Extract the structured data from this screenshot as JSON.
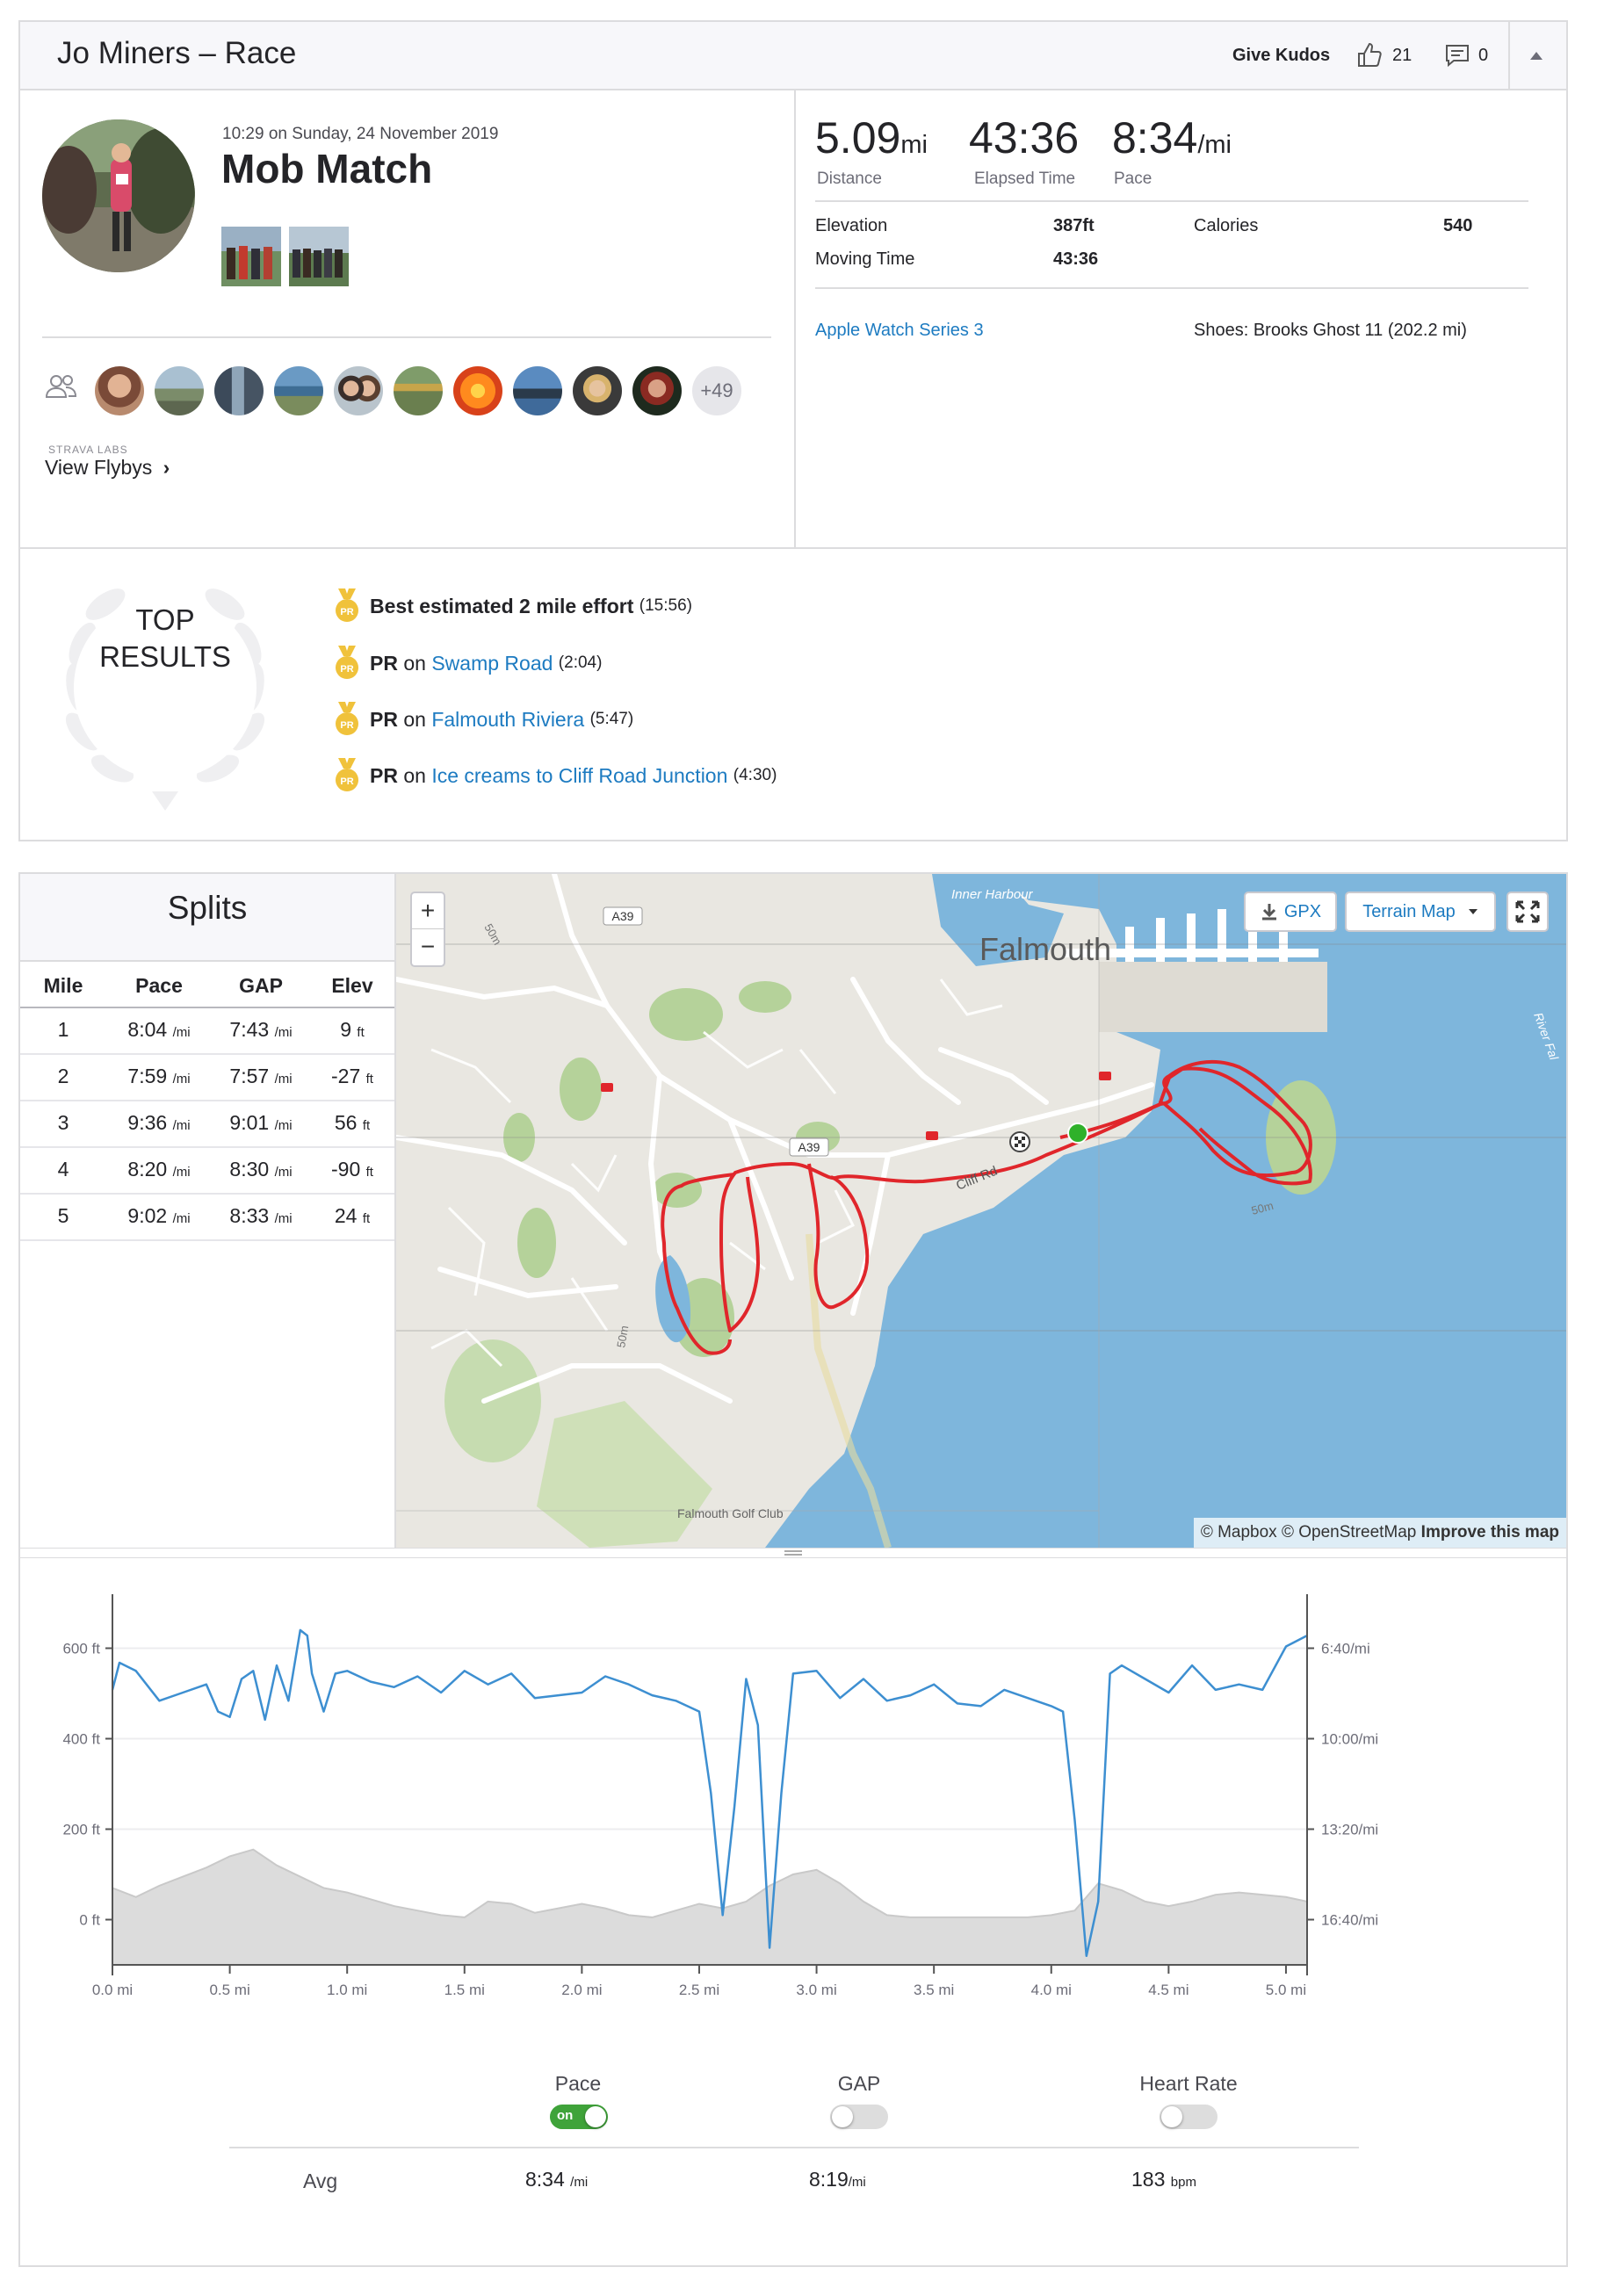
{
  "header": {
    "title": "Jo Miners – Race",
    "give_kudos": "Give Kudos",
    "kudos_count": "21",
    "comment_count": "0",
    "icons": [
      "thumbs-up-icon",
      "comment-icon",
      "caret-up-icon"
    ]
  },
  "activity": {
    "datetime": "10:29 on Sunday, 24 November 2019",
    "name": "Mob Match",
    "more_athletes": "+49",
    "labs_label": "STRAVA LABS",
    "flybys": "View Flybys",
    "flybys_chevron": "›"
  },
  "stats": {
    "distance_value": "5.09",
    "distance_unit": "mi",
    "distance_label": "Distance",
    "elapsed_value": "43:36",
    "elapsed_label": "Elapsed Time",
    "pace_value": "8:34",
    "pace_unit": "/mi",
    "pace_label": "Pace",
    "elevation_label": "Elevation",
    "elevation_value": "387ft",
    "moving_label": "Moving Time",
    "moving_value": "43:36",
    "calories_label": "Calories",
    "calories_value": "540",
    "device": "Apple Watch Series 3",
    "shoes": "Shoes: Brooks Ghost 11 (202.2 mi)"
  },
  "top_results": {
    "line1": "TOP",
    "line2": "RESULTS",
    "medal_text": "PR",
    "items": [
      {
        "bold": "Best estimated 2 mile effort",
        "on": "",
        "link": "",
        "time": "(15:56)"
      },
      {
        "bold": "PR",
        "on": "on",
        "link": "Swamp Road",
        "time": "(2:04)"
      },
      {
        "bold": "PR",
        "on": "on",
        "link": "Falmouth Riviera",
        "time": "(5:47)"
      },
      {
        "bold": "PR",
        "on": "on",
        "link": "Ice creams to Cliff Road Junction",
        "time": "(4:30)"
      }
    ]
  },
  "splits": {
    "title": "Splits",
    "headers": [
      "Mile",
      "Pace",
      "GAP",
      "Elev"
    ],
    "pace_unit": "/mi",
    "elev_unit": "ft",
    "rows": [
      {
        "mile": "1",
        "pace": "8:04",
        "gap": "7:43",
        "elev": "9"
      },
      {
        "mile": "2",
        "pace": "7:59",
        "gap": "7:57",
        "elev": "-27"
      },
      {
        "mile": "3",
        "pace": "9:36",
        "gap": "9:01",
        "elev": "56"
      },
      {
        "mile": "4",
        "pace": "8:20",
        "gap": "8:30",
        "elev": "-90"
      },
      {
        "mile": "5",
        "pace": "9:02",
        "gap": "8:33",
        "elev": "24"
      }
    ]
  },
  "map": {
    "zoom_in": "+",
    "zoom_out": "−",
    "gpx": "GPX",
    "map_type": "Terrain Map",
    "town": "Falmouth",
    "harbour": "Inner Harbour",
    "road_a39": "A39",
    "road_cliff": "Cliff Rd",
    "contour": "50m",
    "golf": "Falmouth Golf Club",
    "river": "River Fal",
    "attr_mapbox": "© Mapbox",
    "attr_osm": "© OpenStreetMap",
    "attr_improve": "Improve this map",
    "colors": {
      "water": "#7eb6dc",
      "land": "#e9e7e1",
      "park": "#b5d29a",
      "route": "#e0262b",
      "start": "#2fb12a"
    }
  },
  "chart_data": {
    "type": "line",
    "x_ticks": [
      "0.0 mi",
      "0.5 mi",
      "1.0 mi",
      "1.5 mi",
      "2.0 mi",
      "2.5 mi",
      "3.0 mi",
      "3.5 mi",
      "4.0 mi",
      "4.5 mi",
      "5.0 mi"
    ],
    "y_left_ticks": [
      "600 ft",
      "400 ft",
      "200 ft",
      "0 ft"
    ],
    "y_right_ticks": [
      "6:40/mi",
      "10:00/mi",
      "13:20/mi",
      "16:40/mi"
    ],
    "x_range": [
      0,
      5.09
    ],
    "elev_range_ft": [
      -100,
      700
    ],
    "pace_range_min_per_mi": [
      5.0,
      18.33
    ],
    "elevation": {
      "x": [
        0,
        0.1,
        0.2,
        0.3,
        0.4,
        0.5,
        0.6,
        0.7,
        0.8,
        0.9,
        1.0,
        1.1,
        1.2,
        1.3,
        1.4,
        1.5,
        1.6,
        1.7,
        1.8,
        1.9,
        2.0,
        2.1,
        2.2,
        2.3,
        2.4,
        2.5,
        2.6,
        2.7,
        2.8,
        2.9,
        3.0,
        3.1,
        3.2,
        3.3,
        3.4,
        3.5,
        3.6,
        3.7,
        3.8,
        3.9,
        4.0,
        4.1,
        4.2,
        4.3,
        4.4,
        4.5,
        4.6,
        4.7,
        4.8,
        4.9,
        5.0,
        5.09
      ],
      "y": [
        70,
        50,
        75,
        95,
        115,
        140,
        155,
        120,
        95,
        70,
        60,
        45,
        30,
        20,
        10,
        5,
        40,
        35,
        15,
        25,
        35,
        25,
        10,
        5,
        20,
        35,
        25,
        40,
        75,
        100,
        110,
        80,
        40,
        10,
        5,
        5,
        5,
        5,
        5,
        5,
        10,
        20,
        80,
        65,
        40,
        30,
        40,
        55,
        60,
        55,
        50,
        40
      ]
    },
    "pace": {
      "x": [
        0,
        0.03,
        0.1,
        0.2,
        0.3,
        0.4,
        0.45,
        0.5,
        0.55,
        0.6,
        0.65,
        0.7,
        0.75,
        0.8,
        0.83,
        0.85,
        0.9,
        0.95,
        1.0,
        1.1,
        1.2,
        1.3,
        1.4,
        1.5,
        1.6,
        1.7,
        1.8,
        1.9,
        2.0,
        2.1,
        2.2,
        2.3,
        2.4,
        2.5,
        2.55,
        2.6,
        2.65,
        2.7,
        2.75,
        2.8,
        2.85,
        2.9,
        3.0,
        3.1,
        3.2,
        3.3,
        3.4,
        3.5,
        3.6,
        3.7,
        3.8,
        3.9,
        4.0,
        4.05,
        4.1,
        4.15,
        4.2,
        4.25,
        4.3,
        4.4,
        4.5,
        4.6,
        4.7,
        4.8,
        4.9,
        5.0,
        5.09
      ],
      "y": [
        8.2,
        7.2,
        7.5,
        8.6,
        8.3,
        8.0,
        9.0,
        9.2,
        7.8,
        7.5,
        9.3,
        7.3,
        8.6,
        6.0,
        6.2,
        7.6,
        9.0,
        7.6,
        7.5,
        7.9,
        8.1,
        7.7,
        8.3,
        7.5,
        8.0,
        7.6,
        8.5,
        8.4,
        8.3,
        7.7,
        8.0,
        8.4,
        8.6,
        9.0,
        12.0,
        16.5,
        12.5,
        7.8,
        9.5,
        17.7,
        12.0,
        7.6,
        7.5,
        8.5,
        7.8,
        8.6,
        8.4,
        8.0,
        8.7,
        8.8,
        8.2,
        8.5,
        8.8,
        9.0,
        13.0,
        18.0,
        16.0,
        7.6,
        7.3,
        7.8,
        8.3,
        7.3,
        8.2,
        8.0,
        8.2,
        6.6,
        6.2
      ]
    },
    "colors": {
      "pace": "#3d8fd1",
      "elevation_fill": "#dcdcdc",
      "elevation_line": "#c9c9c9"
    }
  },
  "legend": {
    "pace": "Pace",
    "gap": "GAP",
    "hr": "Heart Rate",
    "on_text": "on",
    "avg_label": "Avg",
    "avg_pace": "8:34",
    "avg_pace_unit": "/mi",
    "avg_gap": "8:19",
    "avg_gap_unit": "/mi",
    "avg_hr": "183",
    "avg_hr_unit": "bpm"
  }
}
